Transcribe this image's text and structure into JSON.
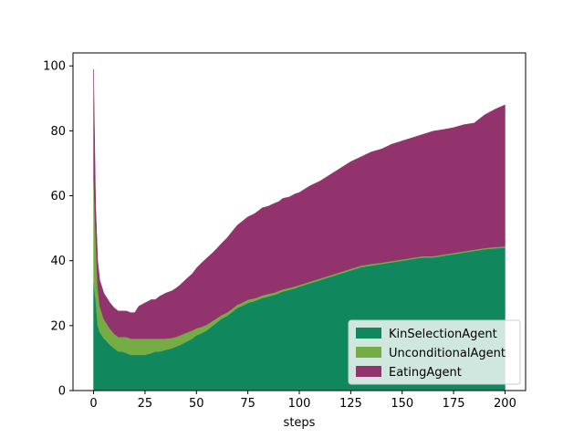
{
  "chart_data": {
    "type": "area",
    "stacked": true,
    "xlabel": "steps",
    "ylabel": "",
    "xlim": [
      -10,
      210
    ],
    "ylim": [
      0,
      104
    ],
    "x_ticks": [
      0,
      25,
      50,
      75,
      100,
      125,
      150,
      175,
      200
    ],
    "y_ticks": [
      0,
      20,
      40,
      60,
      80,
      100
    ],
    "grid": false,
    "legend_position": "lower-right",
    "x": [
      0,
      1,
      2,
      3,
      4,
      5,
      6,
      8,
      10,
      12,
      14,
      16,
      18,
      20,
      22,
      25,
      28,
      30,
      32,
      35,
      38,
      40,
      42,
      45,
      48,
      50,
      52,
      55,
      58,
      60,
      62,
      65,
      68,
      70,
      72,
      75,
      78,
      80,
      82,
      85,
      88,
      90,
      92,
      95,
      98,
      100,
      105,
      110,
      115,
      120,
      125,
      130,
      135,
      140,
      145,
      150,
      155,
      160,
      165,
      170,
      175,
      180,
      185,
      190,
      195,
      200
    ],
    "series": [
      {
        "name": "KinSelectionAgent",
        "color": "#11875d",
        "values": [
          33,
          28,
          20,
          18,
          17,
          16,
          15.5,
          14,
          13,
          12,
          12,
          11.5,
          11,
          11,
          11,
          11,
          11.5,
          12,
          12,
          12.5,
          13,
          13.5,
          14,
          15,
          16,
          17,
          17.5,
          18.5,
          20,
          21,
          22,
          23,
          24.5,
          25.5,
          26,
          27,
          27.5,
          28,
          28.5,
          29,
          29.5,
          30,
          30.5,
          31,
          31.5,
          32,
          33,
          34,
          35,
          36,
          37,
          38,
          38.5,
          39,
          39.5,
          40,
          40.5,
          41,
          41,
          41.5,
          42,
          42.5,
          43,
          43.5,
          43.8,
          44
        ]
      },
      {
        "name": "UnconditionalAgent",
        "color": "#75ac44",
        "values": [
          33,
          20,
          12,
          8,
          7,
          6,
          5.5,
          5,
          4.5,
          4.5,
          4.5,
          5,
          5,
          5,
          5,
          5,
          4.5,
          4,
          4,
          3.5,
          3.2,
          3,
          3,
          2.8,
          2.5,
          2.2,
          2,
          1.8,
          1.5,
          1.3,
          1.2,
          1.1,
          1,
          1,
          1,
          1,
          0.9,
          0.8,
          0.8,
          0.8,
          0.7,
          0.7,
          0.7,
          0.6,
          0.6,
          0.5,
          0.5,
          0.5,
          0.5,
          0.5,
          0.5,
          0.5,
          0.5,
          0.4,
          0.4,
          0.4,
          0.4,
          0.4,
          0.4,
          0.4,
          0.4,
          0.4,
          0.4,
          0.4,
          0.4,
          0.4
        ]
      },
      {
        "name": "EatingAgent",
        "color": "#93336d",
        "values": [
          33,
          9,
          8,
          8,
          8,
          8,
          8,
          8,
          8,
          8,
          8,
          8,
          8,
          8,
          10,
          11,
          12,
          12,
          13,
          14,
          14.5,
          15,
          15.5,
          16.5,
          17.5,
          18.5,
          19.5,
          20.5,
          21,
          21.5,
          22,
          23,
          24,
          24.5,
          25,
          25.5,
          26,
          26.5,
          27,
          27,
          27.5,
          27.5,
          28,
          28,
          28.5,
          28.5,
          29.5,
          30,
          31,
          32,
          33,
          33.5,
          34.5,
          35,
          36,
          36.5,
          37,
          37.5,
          38.5,
          38.5,
          38.6,
          39,
          39,
          41,
          42.4,
          43.6
        ]
      }
    ]
  }
}
